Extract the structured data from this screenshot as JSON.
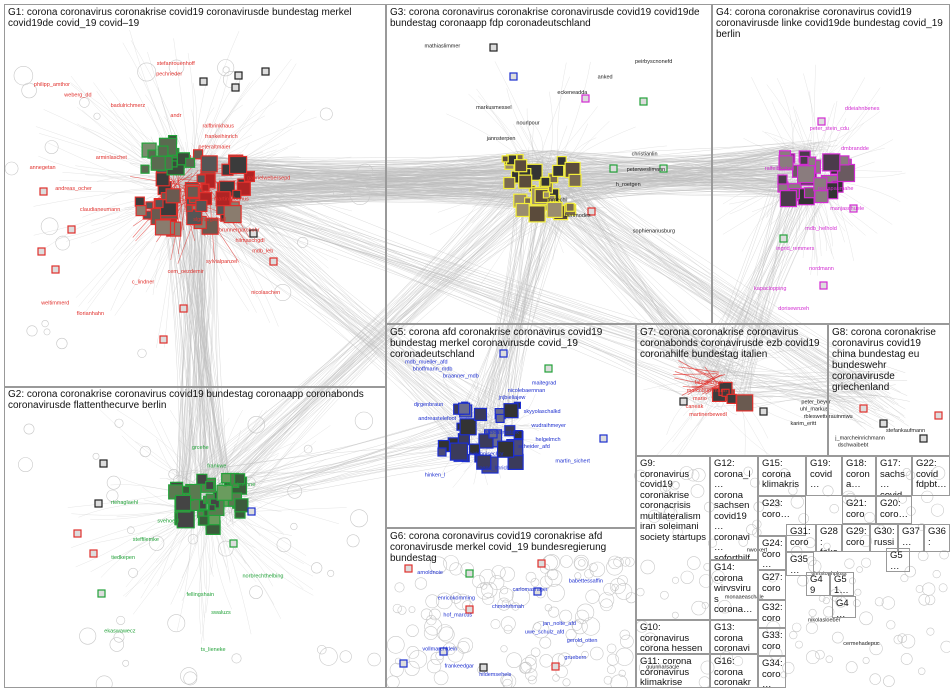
{
  "groups": [
    {
      "id": "G1",
      "title": "G1: corona coronavirus coronakrise covid19 coronavirusde bundestag merkel covid19de covid_19 covid–19"
    },
    {
      "id": "G2",
      "title": "G2: corona coronakrise coronavirus covid19 bundestag coronaapp coronabonds coronavirusde flattenthecurve berlin"
    },
    {
      "id": "G3",
      "title": "G3: corona coronavirus coronakrise coronavirusde covid19 covid19de bundestag coronaapp fdp coronadeutschland"
    },
    {
      "id": "G4",
      "title": "G4: corona coronakrise coronavirus covid19 coronavirusde linke covid19de bundestag covid_19 berlin"
    },
    {
      "id": "G5",
      "title": "G5: corona afd coronakrise coronavirus covid19 bundestag merkel coronavirusde covid_19 coronadeutschland"
    },
    {
      "id": "G6",
      "title": "G6: corona coronavirus covid19 coronakrise afd coronavirusde merkel covid_19 bundesregierung bundestag"
    },
    {
      "id": "G7",
      "title": "G7: corona coronakrise coronavirus coronabonds coronavirusde ezb covid19 coronahilfe bundestag italien"
    },
    {
      "id": "G8",
      "title": "G8: corona coronakrise coronavirus covid19 china bundestag eu bundeswehr coronavirusde griechenland"
    },
    {
      "id": "G9",
      "title": "G9: coronavirus covid19 coronakrise coronacrisis multilateralism iran soleimani society startups"
    },
    {
      "id": "G10",
      "title": "G10: coronavirus corona hessen covid19 eu eusolidarity…"
    },
    {
      "id": "G11",
      "title": "G11: corona coronavirus klimakrise coronakrise bundestag…"
    },
    {
      "id": "G12",
      "title": "G12: corona_l… corona sachsen covid19… coronavi… soforthilfe covid19…"
    },
    {
      "id": "G13",
      "title": "G13: corona coronavi…"
    },
    {
      "id": "G14",
      "title": "G14: corona wirvsvirus corona…"
    },
    {
      "id": "G15",
      "title": "G15: corona klimakris…"
    },
    {
      "id": "G16",
      "title": "G16: corona coronakr…"
    },
    {
      "id": "G17",
      "title": "G17: sachs… covid…"
    },
    {
      "id": "G18",
      "title": "G18: corona…"
    },
    {
      "id": "G19",
      "title": "G19: covid…"
    },
    {
      "id": "G20",
      "title": "G20: coro…"
    },
    {
      "id": "G21",
      "title": "G21: coro…"
    },
    {
      "id": "G22",
      "title": "G22: covid fdpbt…"
    },
    {
      "id": "G23",
      "title": "G23: coro…"
    },
    {
      "id": "G24",
      "title": "G24: coro…"
    },
    {
      "id": "G25",
      "title": "G25: coro…"
    },
    {
      "id": "G26",
      "title": "G26: coro…"
    },
    {
      "id": "G27",
      "title": "G27: coro…"
    },
    {
      "id": "G28",
      "title": "G28: fake…"
    },
    {
      "id": "G29",
      "title": "G29: coro…"
    },
    {
      "id": "G30",
      "title": "G30: russi…"
    },
    {
      "id": "G31",
      "title": "G31: coro…"
    },
    {
      "id": "G32",
      "title": "G32: coro…"
    },
    {
      "id": "G33",
      "title": "G33: coro…"
    },
    {
      "id": "G34",
      "title": "G34: coro…"
    },
    {
      "id": "G35",
      "title": "G35…"
    },
    {
      "id": "G36",
      "title": "G36:"
    },
    {
      "id": "G37",
      "title": "G37…"
    },
    {
      "id": "G4x",
      "title": "G4…"
    },
    {
      "id": "G49",
      "title": "G49"
    },
    {
      "id": "G50",
      "title": "G50"
    },
    {
      "id": "G51",
      "title": "G51…"
    },
    {
      "id": "G5x",
      "title": "G5…"
    }
  ],
  "labels": {
    "g1": [
      "stefanrouenhoff",
      "pechrieder",
      "philipp_amthor",
      "weberg_dd",
      "badulrichmerz",
      "andr",
      "ralfbrinkhaus",
      "frankeihinrich",
      "peteraltmaier",
      "arminlaschet",
      "annegetan",
      "gabrielwebersepd",
      "andreas_ocher",
      "martinrabanus",
      "claudianeumann",
      "slgmargabriel",
      "brunnergarchohr",
      "hilmaschgdl",
      "mdb_leb",
      "sylvialpanzel",
      "cem_oezdemir",
      "c_lindner",
      "nicolaschen",
      "weltimmerd",
      "florianhahn"
    ],
    "g2": [
      "grcehe",
      "frankwe",
      "dr_roy_kuehne",
      "rtehaglaehl",
      "svehoegl",
      "steffilemke",
      "tiedkepen",
      "norbrechthelbing",
      "fellingshain",
      "swaluzs",
      "ekaswawecz",
      "ts_lieneke"
    ],
    "g3": [
      "mathiaslimmer",
      "peirbyscnonefd",
      "anked",
      "eckeneadda",
      "markusmessel",
      "nourlpour",
      "jannsterpen",
      "christianlin",
      "peterweslimann",
      "h_roetgen",
      "thmechl",
      "benmodes",
      "sophienanusburg"
    ],
    "g4": [
      "ddeiahnbenes",
      "peter_stein_cdu",
      "dmbrandde",
      "ralfelbhahre",
      "petrapaumahe",
      "manjaschuele",
      "mdb_helhold",
      "ingrid_remmers",
      "nordmann",
      "kapaclopping",
      "dorisewnzeh"
    ],
    "g5": [
      "mdb_mueller_afd",
      "bhoffmann_mdb",
      "braanner_mdb",
      "maitegrad",
      "nicolebaernnan",
      "jnjbieliajew",
      "djrgenbraun",
      "skyyolaschalkd",
      "andreastelefoot",
      "wudraihmeyer",
      "haboaumstark",
      "helgelmch",
      "scheider_afd",
      "nidehnisechar",
      "martin_sichert",
      "roene_lmrich",
      "hinken_l"
    ],
    "g6": [
      "arnoldnoie",
      "babettessaffin",
      "carlomasrager",
      "enricokomming",
      "chmohrhmah",
      "hof_marcus",
      "jan_nolte_afd",
      "uwe_schulz_afd",
      "gerold_otten",
      "vollmarchklein",
      "gruebern",
      "frankeedgar",
      "hildemsehels"
    ],
    "g7": [
      "fabiotomasi",
      "marcoburnmann",
      "mario",
      "caneak",
      "martinerbewedl"
    ],
    "g8": [
      "peter_beyer",
      "uhl_markus",
      "rbleswetterauinmwu",
      "karim_eritt",
      "stefankaufmann",
      "j_marcheinrichmann",
      "dschwaibebt"
    ],
    "misc": [
      "nwolkert",
      "christophploss",
      "monaaeaschale",
      "nikolasloeber",
      "cermehadepuc",
      "guunnarsacle"
    ]
  },
  "colors": {
    "edge": "#bdbdbd",
    "red": "#e0302c",
    "green": "#23a23a",
    "yellow": "#f3ee3b",
    "magenta": "#d22bd2",
    "blue": "#1c2ecf",
    "black": "#222222"
  }
}
